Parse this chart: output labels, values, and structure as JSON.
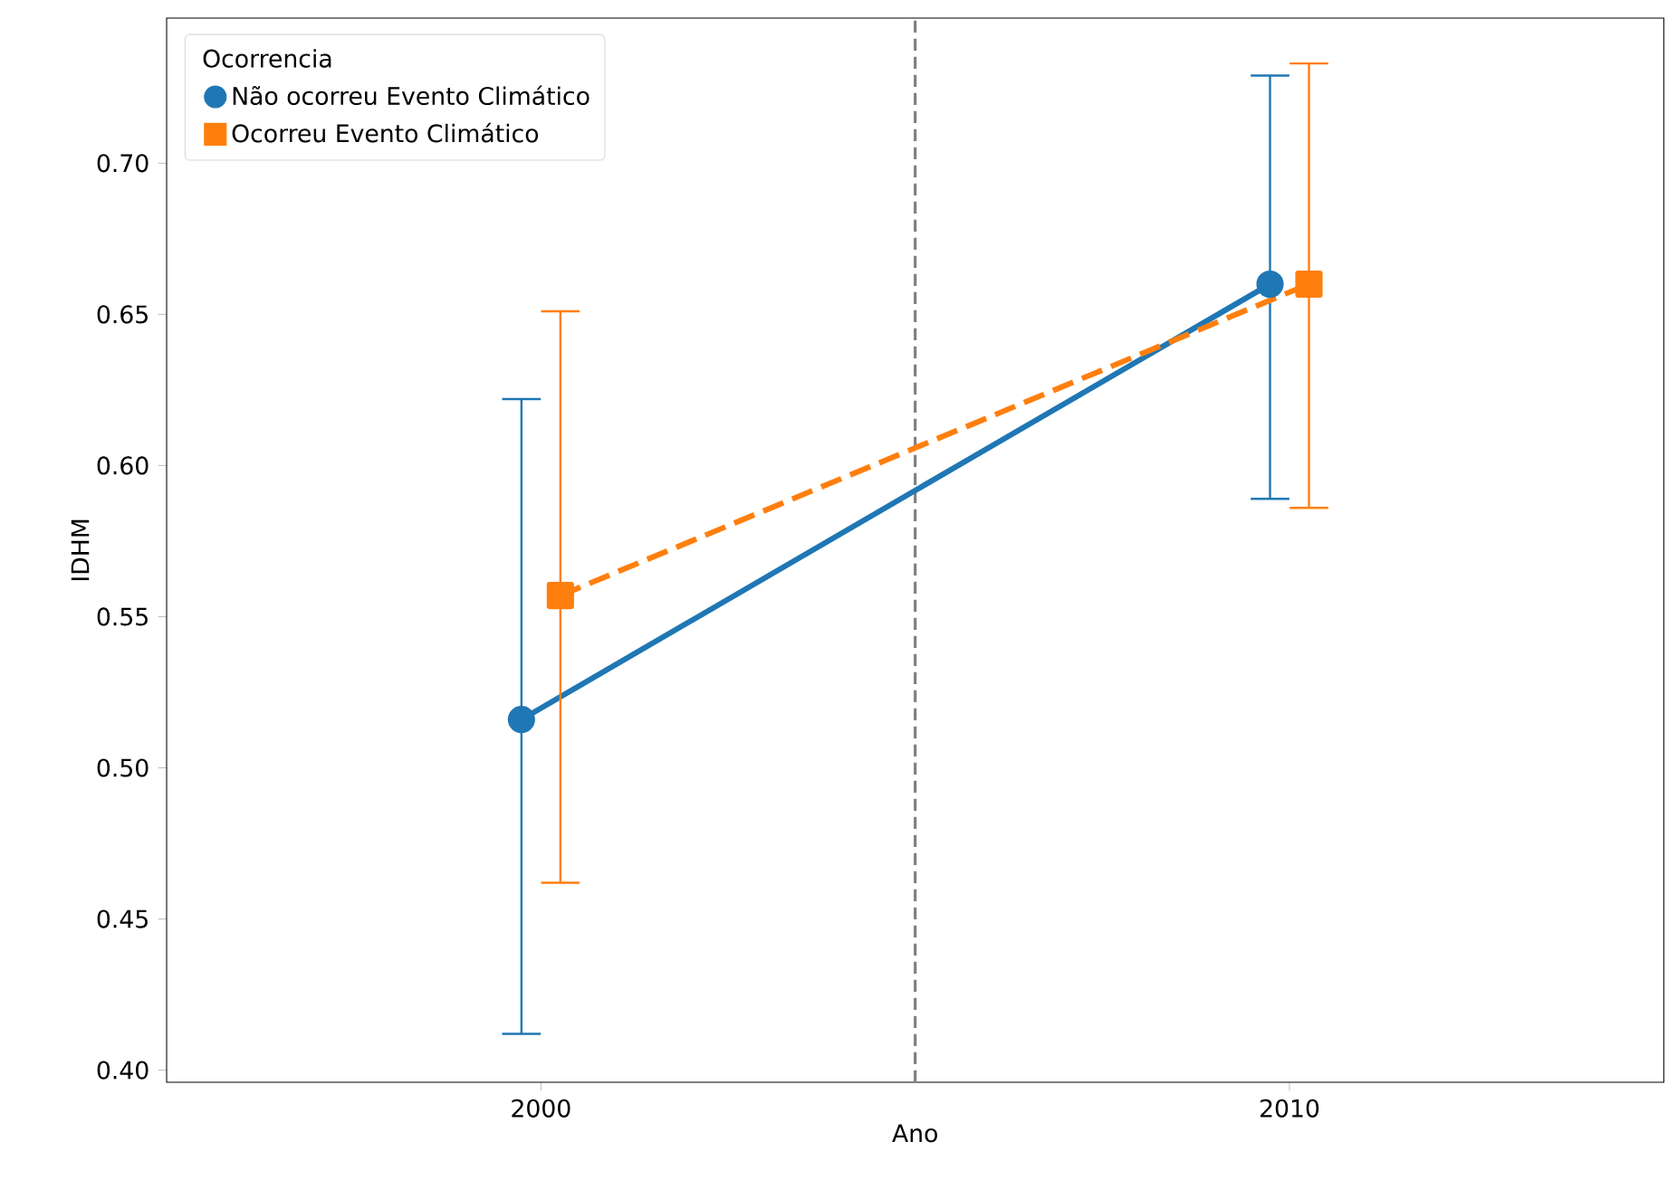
{
  "chart_data": {
    "type": "line",
    "xlabel": "Ano",
    "ylabel": "IDHM",
    "legend_title": "Ocorrencia",
    "categories": [
      "2000",
      "2010"
    ],
    "series": [
      {
        "name": "Não ocorreu Evento Climático",
        "color": "#1f77b4",
        "values": [
          0.516,
          0.66
        ],
        "errors": [
          [
            0.412,
            0.622
          ],
          [
            0.589,
            0.729
          ]
        ],
        "marker": "circle",
        "line_style": "solid"
      },
      {
        "name": "Ocorreu Evento Climático",
        "color": "#ff7f0e",
        "values": [
          0.557,
          0.66
        ],
        "errors": [
          [
            0.462,
            0.651
          ],
          [
            0.586,
            0.733
          ]
        ],
        "marker": "square",
        "line_style": "dashed"
      }
    ],
    "ylim": [
      0.396,
      0.748
    ],
    "yticks": [
      {
        "value": 0.4,
        "label": "0.40"
      },
      {
        "value": 0.45,
        "label": "0.45"
      },
      {
        "value": 0.5,
        "label": "0.50"
      },
      {
        "value": 0.55,
        "label": "0.55"
      },
      {
        "value": 0.6,
        "label": "0.60"
      },
      {
        "value": 0.65,
        "label": "0.65"
      },
      {
        "value": 0.7,
        "label": "0.70"
      }
    ],
    "grid": false,
    "legend": "top left"
  }
}
